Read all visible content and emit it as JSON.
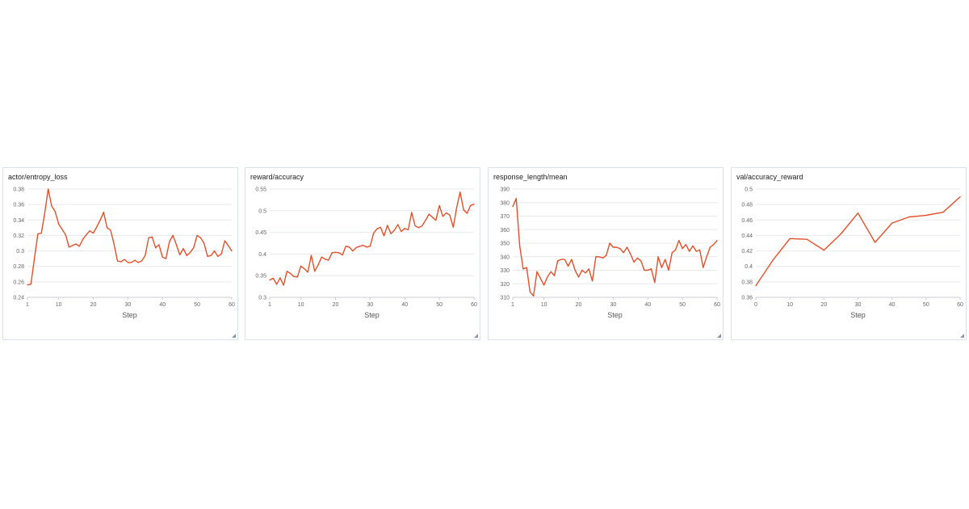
{
  "accent_color": "#e2502a",
  "grid_color": "#e6e9ee",
  "chart_data": [
    {
      "type": "line",
      "title": "actor/entropy_loss",
      "xlabel": "Step",
      "xlim": [
        1,
        60
      ],
      "xticks": [
        1,
        10,
        20,
        30,
        40,
        50,
        60
      ],
      "ylim": [
        0.24,
        0.38
      ],
      "yticks": [
        0.24,
        0.26,
        0.28,
        0.3,
        0.32,
        0.34,
        0.36,
        0.38
      ],
      "ytick_labels": [
        "0.24",
        "0.26",
        "0.28",
        "0.3",
        "0.32",
        "0.34",
        "0.36",
        "0.38"
      ],
      "grid": true,
      "series": [
        {
          "x": [
            1,
            2,
            3,
            4,
            5,
            6,
            7,
            8,
            9,
            10,
            11,
            12,
            13,
            14,
            15,
            16,
            17,
            18,
            19,
            20,
            21,
            22,
            23,
            24,
            25,
            26,
            27,
            28,
            29,
            30,
            31,
            32,
            33,
            34,
            35,
            36,
            37,
            38,
            39,
            40,
            41,
            42,
            43,
            44,
            45,
            46,
            47,
            48,
            49,
            50,
            51,
            52,
            53,
            54,
            55,
            56,
            57,
            58,
            59,
            60
          ],
          "values": [
            0.256,
            0.257,
            0.29,
            0.322,
            0.323,
            0.349,
            0.38,
            0.358,
            0.351,
            0.335,
            0.328,
            0.321,
            0.305,
            0.307,
            0.309,
            0.306,
            0.315,
            0.321,
            0.326,
            0.323,
            0.331,
            0.34,
            0.35,
            0.33,
            0.327,
            0.309,
            0.287,
            0.286,
            0.289,
            0.285,
            0.285,
            0.288,
            0.285,
            0.287,
            0.294,
            0.317,
            0.318,
            0.304,
            0.308,
            0.292,
            0.29,
            0.312,
            0.32,
            0.308,
            0.295,
            0.303,
            0.294,
            0.298,
            0.304,
            0.32,
            0.317,
            0.31,
            0.293,
            0.294,
            0.3,
            0.293,
            0.296,
            0.313,
            0.307,
            0.3
          ]
        }
      ]
    },
    {
      "type": "line",
      "title": "reward/accuracy",
      "xlabel": "Step",
      "xlim": [
        1,
        60
      ],
      "xticks": [
        1,
        10,
        20,
        30,
        40,
        50,
        60
      ],
      "ylim": [
        0.3,
        0.55
      ],
      "yticks": [
        0.3,
        0.35,
        0.4,
        0.45,
        0.5,
        0.55
      ],
      "ytick_labels": [
        "0.3",
        "0.35",
        "0.4",
        "0.45",
        "0.5",
        "0.55"
      ],
      "grid": true,
      "series": [
        {
          "x": [
            1,
            2,
            3,
            4,
            5,
            6,
            7,
            8,
            9,
            10,
            11,
            12,
            13,
            14,
            15,
            16,
            17,
            18,
            19,
            20,
            21,
            22,
            23,
            24,
            25,
            26,
            27,
            28,
            29,
            30,
            31,
            32,
            33,
            34,
            35,
            36,
            37,
            38,
            39,
            40,
            41,
            42,
            43,
            44,
            45,
            46,
            47,
            48,
            49,
            50,
            51,
            52,
            53,
            54,
            55,
            56,
            57,
            58,
            59,
            60
          ],
          "values": [
            0.34,
            0.344,
            0.33,
            0.345,
            0.328,
            0.36,
            0.355,
            0.348,
            0.347,
            0.372,
            0.366,
            0.358,
            0.397,
            0.36,
            0.375,
            0.393,
            0.388,
            0.386,
            0.403,
            0.404,
            0.403,
            0.398,
            0.418,
            0.416,
            0.407,
            0.415,
            0.418,
            0.42,
            0.416,
            0.418,
            0.448,
            0.458,
            0.462,
            0.442,
            0.466,
            0.447,
            0.455,
            0.468,
            0.452,
            0.459,
            0.456,
            0.496,
            0.465,
            0.461,
            0.465,
            0.478,
            0.492,
            0.485,
            0.478,
            0.512,
            0.487,
            0.495,
            0.49,
            0.462,
            0.508,
            0.543,
            0.502,
            0.494,
            0.512,
            0.515
          ]
        }
      ]
    },
    {
      "type": "line",
      "title": "response_length/mean",
      "xlabel": "Step",
      "xlim": [
        1,
        60
      ],
      "xticks": [
        1,
        10,
        20,
        30,
        40,
        50,
        60
      ],
      "ylim": [
        310,
        390
      ],
      "yticks": [
        310,
        320,
        330,
        340,
        350,
        360,
        370,
        380,
        390
      ],
      "ytick_labels": [
        "310",
        "320",
        "330",
        "340",
        "350",
        "360",
        "370",
        "380",
        "390"
      ],
      "grid": true,
      "series": [
        {
          "x": [
            1,
            2,
            3,
            4,
            5,
            6,
            7,
            8,
            9,
            10,
            11,
            12,
            13,
            14,
            15,
            16,
            17,
            18,
            19,
            20,
            21,
            22,
            23,
            24,
            25,
            26,
            27,
            28,
            29,
            30,
            31,
            32,
            33,
            34,
            35,
            36,
            37,
            38,
            39,
            40,
            41,
            42,
            43,
            44,
            45,
            46,
            47,
            48,
            49,
            50,
            51,
            52,
            53,
            54,
            55,
            56,
            57,
            58,
            59,
            60
          ],
          "values": [
            377,
            383,
            348,
            331,
            332,
            314,
            311,
            329,
            324,
            319,
            325,
            329,
            326,
            337,
            338,
            338,
            333,
            338,
            330,
            325,
            330,
            328,
            331,
            322,
            340,
            340,
            339,
            341,
            350,
            347,
            347,
            346,
            343,
            347,
            342,
            336,
            339,
            337,
            330,
            330,
            331,
            321,
            340,
            332,
            338,
            330,
            343,
            345,
            352,
            346,
            349,
            344,
            348,
            344,
            345,
            332,
            340,
            347,
            349,
            352
          ]
        }
      ]
    },
    {
      "type": "line",
      "title": "val/accuracy_reward",
      "xlabel": "Step",
      "xlim": [
        0,
        60
      ],
      "xticks": [
        0,
        10,
        20,
        30,
        40,
        50,
        60
      ],
      "ylim": [
        0.36,
        0.5
      ],
      "yticks": [
        0.36,
        0.38,
        0.4,
        0.42,
        0.44,
        0.46,
        0.48,
        0.5
      ],
      "ytick_labels": [
        "0.36",
        "0.38",
        "0.4",
        "0.42",
        "0.44",
        "0.46",
        "0.48",
        "0.5"
      ],
      "grid": true,
      "series": [
        {
          "x": [
            0,
            5,
            10,
            15,
            20,
            25,
            30,
            35,
            40,
            45,
            50,
            55,
            60
          ],
          "values": [
            0.375,
            0.408,
            0.436,
            0.435,
            0.421,
            0.442,
            0.469,
            0.431,
            0.456,
            0.464,
            0.466,
            0.47,
            0.49
          ]
        }
      ]
    }
  ]
}
